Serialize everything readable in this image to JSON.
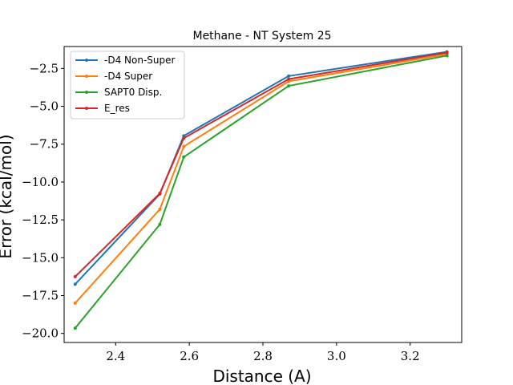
{
  "chart_data": {
    "type": "line",
    "title": "Methane - NT System 25",
    "xlabel": "Distance (A)",
    "ylabel": "Error (kcal/mol)",
    "xlim": [
      2.26,
      3.34
    ],
    "ylim": [
      -20.6,
      -1.05
    ],
    "xticks": [
      2.4,
      2.6,
      2.8,
      3.0,
      3.2
    ],
    "yticks": [
      -20.0,
      -17.5,
      -15.0,
      -12.5,
      -10.0,
      -7.5,
      -5.0,
      -2.5
    ],
    "xtick_labels": [
      "2.4",
      "2.6",
      "2.8",
      "3.0",
      "3.2"
    ],
    "ytick_labels": [
      "−20.0",
      "−17.5",
      "−15.0",
      "−12.5",
      "−10.0",
      "−7.5",
      "−5.0",
      "−2.5"
    ],
    "grid": false,
    "legend_position": "top-left",
    "x": [
      2.29,
      2.52,
      2.585,
      2.87,
      3.3
    ],
    "series": [
      {
        "name": "-D4 Non-Super",
        "color": "#1f77b4",
        "values": [
          -16.75,
          -10.8,
          -6.95,
          -3.0,
          -1.4
        ]
      },
      {
        "name": "-D4 Super",
        "color": "#ff7f0e",
        "values": [
          -18.0,
          -11.8,
          -7.65,
          -3.35,
          -1.55
        ]
      },
      {
        "name": "SAPT0 Disp.",
        "color": "#2ca02c",
        "values": [
          -19.65,
          -12.8,
          -8.35,
          -3.65,
          -1.65
        ]
      },
      {
        "name": "E_res",
        "color": "#d62728",
        "values": [
          -16.25,
          -10.75,
          -7.1,
          -3.2,
          -1.45
        ]
      }
    ]
  }
}
